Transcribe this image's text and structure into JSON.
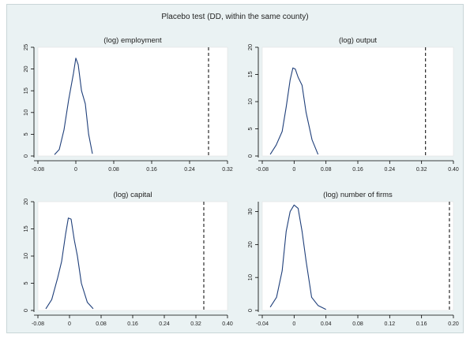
{
  "title": "Placebo test (DD, within the same county)",
  "colors": {
    "background": "#eaf2f3",
    "plot_area": "#ffffff",
    "curve": "#1f3f7a",
    "axis": "#000000"
  },
  "chart_data": [
    {
      "type": "line",
      "title": "(log) employment",
      "xlabel": "",
      "ylabel": "",
      "xlim": [
        -0.08,
        0.32
      ],
      "ylim": [
        0,
        25
      ],
      "xticks": [
        "-0.08",
        "0",
        "0.08",
        "0.16",
        "0.24",
        "0.32"
      ],
      "yticks": [
        "0",
        "5",
        "10",
        "15",
        "20",
        "25"
      ],
      "reference_line_x": 0.28,
      "reference_line_style": "dashed",
      "x": [
        -0.045,
        -0.035,
        -0.025,
        -0.015,
        -0.005,
        0.0,
        0.005,
        0.012,
        0.02,
        0.027,
        0.035
      ],
      "y": [
        0.3,
        1.5,
        6,
        13,
        19,
        22.5,
        21,
        15,
        12,
        5,
        0.5
      ]
    },
    {
      "type": "line",
      "title": "(log) output",
      "xlabel": "",
      "ylabel": "",
      "xlim": [
        -0.08,
        0.4
      ],
      "ylim": [
        0,
        20
      ],
      "xticks": [
        "-0.08",
        "0",
        "0.08",
        "0.16",
        "0.24",
        "0.32",
        "0.40"
      ],
      "yticks": [
        "0",
        "5",
        "10",
        "15",
        "20"
      ],
      "reference_line_x": 0.33,
      "reference_line_style": "dashed",
      "x": [
        -0.06,
        -0.045,
        -0.03,
        -0.02,
        -0.01,
        -0.003,
        0.003,
        0.01,
        0.02,
        0.03,
        0.045,
        0.06
      ],
      "y": [
        0.3,
        2,
        4.5,
        9,
        14,
        16.2,
        16,
        14.5,
        13,
        8,
        3,
        0.3
      ]
    },
    {
      "type": "line",
      "title": "(log) capital",
      "xlabel": "",
      "ylabel": "",
      "xlim": [
        -0.08,
        0.4
      ],
      "ylim": [
        0,
        20
      ],
      "xticks": [
        "-0.08",
        "0",
        "0.08",
        "0.16",
        "0.24",
        "0.32",
        "0.40"
      ],
      "yticks": [
        "0",
        "5",
        "10",
        "15",
        "20"
      ],
      "reference_line_x": 0.34,
      "reference_line_style": "dashed",
      "x": [
        -0.06,
        -0.045,
        -0.03,
        -0.02,
        -0.01,
        -0.003,
        0.004,
        0.012,
        0.02,
        0.03,
        0.045,
        0.06
      ],
      "y": [
        0.3,
        2,
        6,
        9,
        14,
        17,
        16.8,
        13,
        10,
        5,
        1.5,
        0.3
      ]
    },
    {
      "type": "line",
      "title": "(log) number of firms",
      "xlabel": "",
      "ylabel": "",
      "xlim": [
        -0.04,
        0.2
      ],
      "ylim": [
        0,
        33
      ],
      "xticks": [
        "-0.04",
        "0",
        "0.04",
        "0.08",
        "0.12",
        "0.16",
        "0.20"
      ],
      "yticks": [
        "0",
        "10",
        "20",
        "30"
      ],
      "reference_line_x": 0.195,
      "reference_line_style": "dashed",
      "x": [
        -0.03,
        -0.022,
        -0.015,
        -0.01,
        -0.005,
        0.0,
        0.005,
        0.01,
        0.015,
        0.022,
        0.03,
        0.04
      ],
      "y": [
        1,
        4,
        12,
        24,
        30,
        32,
        31,
        24,
        15,
        4,
        1.5,
        0.3
      ]
    }
  ]
}
